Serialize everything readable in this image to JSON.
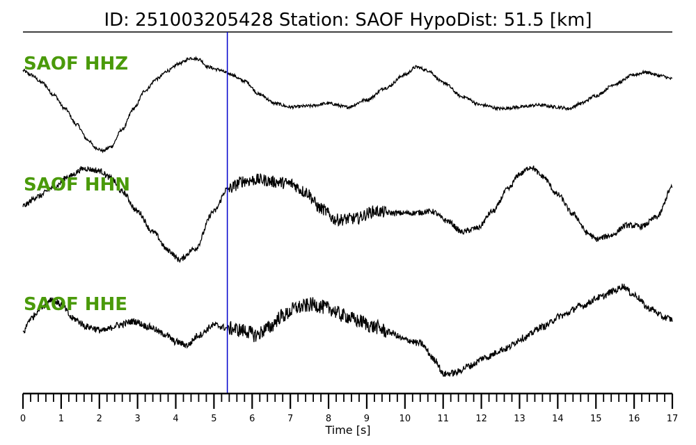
{
  "colors": {
    "label": "#4a9a0a",
    "trace": "#000000",
    "marker": "#0000cc",
    "axis": "#000000"
  },
  "chart_data": {
    "type": "line",
    "title": "ID: 251003205428   Station: SAOF   HypoDist:     51.5 [km]",
    "xlabel": "Time [s]",
    "xlim": [
      0,
      17
    ],
    "x_ticks": [
      0,
      1,
      2,
      3,
      4,
      5,
      6,
      7,
      8,
      9,
      10,
      11,
      12,
      13,
      14,
      15,
      16,
      17
    ],
    "x_minor_step": 0.2,
    "y_units": "relative amplitude (each trace normalized to [-1, 1])",
    "pick_time": 5.35,
    "series": [
      {
        "name": "SAOF HHZ",
        "x": [
          0,
          0.2,
          0.5,
          0.8,
          1.1,
          1.4,
          1.7,
          1.9,
          2.1,
          2.3,
          2.6,
          2.9,
          3.2,
          3.5,
          3.8,
          4.1,
          4.4,
          4.6,
          4.85,
          5.1,
          5.4,
          5.8,
          6.2,
          6.6,
          7.0,
          7.5,
          8.0,
          8.5,
          9.0,
          9.5,
          10.0,
          10.3,
          10.6,
          11.0,
          11.5,
          12.0,
          12.5,
          13.0,
          13.5,
          14.0,
          14.3,
          14.6,
          15.0,
          15.5,
          16.0,
          16.3,
          16.7,
          17.0
        ],
        "y": [
          0.58,
          0.5,
          0.35,
          0.12,
          -0.15,
          -0.45,
          -0.75,
          -0.9,
          -0.96,
          -0.88,
          -0.55,
          -0.15,
          0.2,
          0.42,
          0.58,
          0.72,
          0.82,
          0.8,
          0.65,
          0.6,
          0.52,
          0.38,
          0.12,
          -0.05,
          -0.12,
          -0.1,
          -0.05,
          -0.12,
          0.02,
          0.25,
          0.5,
          0.65,
          0.58,
          0.35,
          0.08,
          -0.08,
          -0.15,
          -0.12,
          -0.08,
          -0.12,
          -0.15,
          -0.05,
          0.1,
          0.32,
          0.5,
          0.55,
          0.48,
          0.42
        ],
        "noise": 0.03
      },
      {
        "name": "SAOF HHN",
        "x": [
          0,
          0.4,
          0.8,
          1.2,
          1.6,
          2.0,
          2.3,
          2.6,
          3.0,
          3.4,
          3.8,
          4.1,
          4.5,
          5.0,
          5.35,
          5.8,
          6.2,
          6.6,
          7.0,
          7.4,
          7.8,
          8.2,
          8.7,
          9.2,
          9.7,
          10.2,
          10.7,
          11.1,
          11.5,
          11.9,
          12.3,
          12.7,
          13.0,
          13.3,
          13.6,
          14.0,
          14.4,
          14.8,
          15.0,
          15.4,
          15.8,
          16.2,
          16.6,
          17.0
        ],
        "y": [
          0.05,
          0.22,
          0.38,
          0.58,
          0.72,
          0.68,
          0.55,
          0.3,
          -0.05,
          -0.42,
          -0.75,
          -0.92,
          -0.72,
          -0.05,
          0.35,
          0.5,
          0.52,
          0.48,
          0.45,
          0.3,
          0.0,
          -0.2,
          -0.18,
          -0.05,
          -0.08,
          -0.08,
          -0.05,
          -0.22,
          -0.42,
          -0.35,
          -0.05,
          0.35,
          0.62,
          0.75,
          0.58,
          0.25,
          -0.1,
          -0.45,
          -0.55,
          -0.48,
          -0.3,
          -0.32,
          -0.15,
          0.38
        ],
        "noise": 0.05
      },
      {
        "name": "SAOF HHE",
        "x": [
          0,
          0.2,
          0.5,
          0.75,
          1.0,
          1.3,
          1.7,
          2.1,
          2.5,
          2.9,
          3.3,
          3.7,
          4.0,
          4.3,
          4.6,
          5.0,
          5.4,
          5.8,
          6.1,
          6.4,
          6.8,
          7.2,
          7.6,
          8.0,
          8.4,
          8.8,
          9.2,
          9.6,
          10.0,
          10.4,
          10.8,
          11.0,
          11.3,
          11.7,
          12.1,
          12.6,
          13.1,
          13.6,
          14.1,
          14.6,
          15.1,
          15.5,
          15.7,
          16.0,
          16.4,
          16.8,
          17.0
        ],
        "y": [
          -0.25,
          0.0,
          0.22,
          0.35,
          0.25,
          0.0,
          -0.15,
          -0.22,
          -0.12,
          -0.05,
          -0.15,
          -0.28,
          -0.42,
          -0.48,
          -0.3,
          -0.12,
          -0.18,
          -0.22,
          -0.3,
          -0.18,
          0.05,
          0.2,
          0.25,
          0.18,
          0.05,
          -0.05,
          -0.15,
          -0.25,
          -0.38,
          -0.45,
          -0.75,
          -1.0,
          -0.98,
          -0.85,
          -0.7,
          -0.55,
          -0.35,
          -0.15,
          0.05,
          0.22,
          0.38,
          0.5,
          0.58,
          0.42,
          0.18,
          0.02,
          -0.02
        ],
        "noise": 0.06
      }
    ]
  }
}
